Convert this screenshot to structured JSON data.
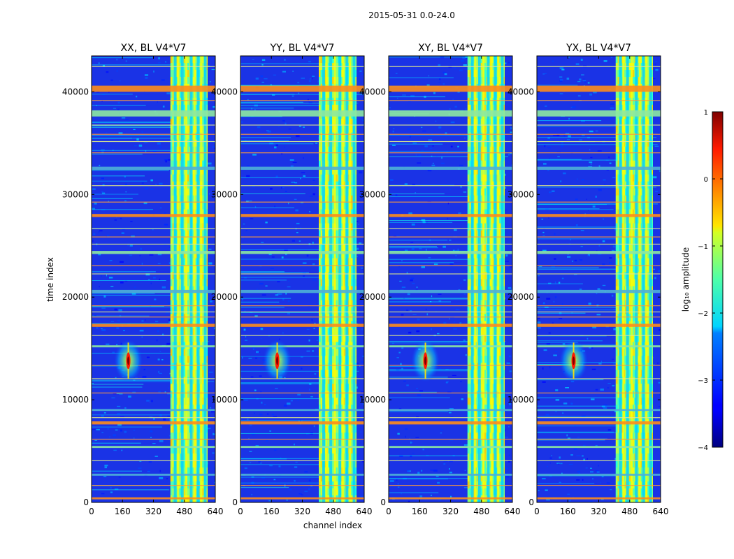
{
  "figure": {
    "suptitle": "2015-05-31 0.0-24.0"
  },
  "chart_data": {
    "type": "heatmap",
    "xlabel": "channel index",
    "ylabel": "time index",
    "xlim": [
      0,
      640
    ],
    "ylim": [
      0,
      43500
    ],
    "xticks": [
      0,
      160,
      320,
      480,
      640
    ],
    "yticks": [
      0,
      10000,
      20000,
      30000,
      40000
    ],
    "colormap": "jet",
    "panels": [
      {
        "title": "XX, BL V4*V7",
        "rfi_block": [
          408,
          600
        ],
        "source_channel": 190,
        "source_time": 13800
      },
      {
        "title": "YY, BL V4*V7",
        "rfi_block": [
          405,
          600
        ],
        "source_channel": 190,
        "source_time": 13800
      },
      {
        "title": "XY, BL V4*V7",
        "rfi_block": [
          408,
          600
        ],
        "source_channel": 190,
        "source_time": 13800
      },
      {
        "title": "YX, BL V4*V7",
        "rfi_block": [
          408,
          600
        ],
        "source_channel": 190,
        "source_time": 13800
      }
    ],
    "strong_flagged_times": [
      [
        40000,
        40600
      ],
      [
        37600,
        38200
      ],
      [
        32400,
        32700
      ],
      [
        27800,
        28100
      ],
      [
        24200,
        24500
      ],
      [
        20400,
        20700
      ],
      [
        17100,
        17400
      ],
      [
        15100,
        15300
      ],
      [
        8900,
        9100
      ],
      [
        7600,
        7900
      ],
      [
        5300,
        5500
      ],
      [
        2600,
        2800
      ],
      [
        300,
        500
      ]
    ],
    "thin_flagged_times": [
      42500,
      39200,
      36800,
      35900,
      35200,
      34100,
      30900,
      29300,
      26700,
      25900,
      25200,
      23100,
      22300,
      19200,
      18600,
      18100,
      16300,
      13400,
      12100,
      10700,
      8300,
      6200,
      4100,
      1700
    ],
    "colorbar": {
      "label": "log₁₀ amplitude",
      "range": [
        -4,
        1
      ],
      "ticks": [
        1,
        0,
        -1,
        -2,
        -3,
        -4
      ],
      "tick_labels": [
        "1",
        "0",
        "−1",
        "−2",
        "−3",
        "−4"
      ]
    }
  }
}
